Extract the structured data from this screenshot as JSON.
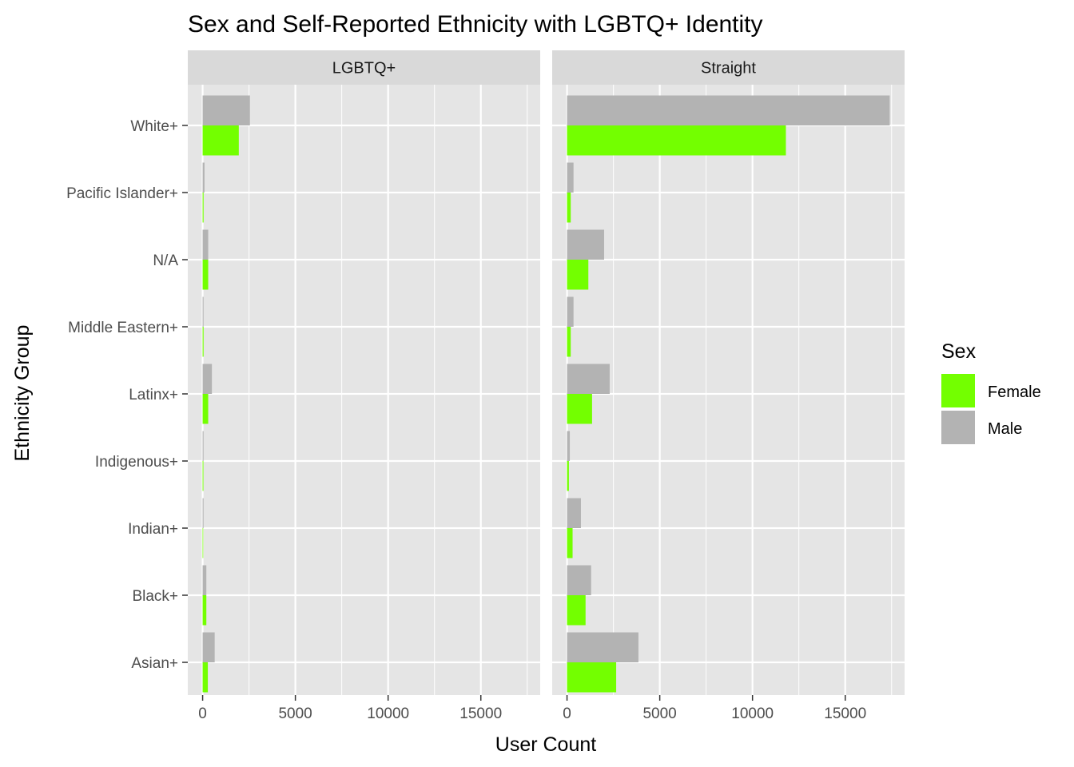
{
  "chart_data": {
    "type": "bar",
    "orientation": "horizontal",
    "title": "Sex and Self-Reported Ethnicity with LGBTQ+ Identity",
    "xlabel": "User Count",
    "ylabel": "Ethnicity Group",
    "xlim": [
      -800,
      18200
    ],
    "x_ticks": [
      0,
      5000,
      10000,
      15000
    ],
    "categories": [
      "White+",
      "Pacific Islander+",
      "N/A",
      "Middle Eastern+",
      "Latinx+",
      "Indigenous+",
      "Indian+",
      "Black+",
      "Asian+"
    ],
    "facets": [
      {
        "label": "LGBTQ+",
        "series": [
          {
            "name": "Female",
            "values": [
              1950,
              50,
              300,
              50,
              300,
              40,
              30,
              200,
              280
            ]
          },
          {
            "name": "Male",
            "values": [
              2550,
              100,
              300,
              50,
              500,
              50,
              50,
              200,
              650
            ]
          }
        ]
      },
      {
        "label": "Straight",
        "series": [
          {
            "name": "Female",
            "values": [
              11800,
              200,
              1150,
              200,
              1350,
              100,
              300,
              1000,
              2650
            ]
          },
          {
            "name": "Male",
            "values": [
              17400,
              350,
              2000,
              350,
              2300,
              150,
              750,
              1300,
              3850
            ]
          }
        ]
      }
    ],
    "legend": {
      "title": "Sex",
      "position": "right",
      "entries": [
        {
          "name": "Female",
          "color": "#73ff00"
        },
        {
          "name": "Male",
          "color": "#b3b3b3"
        }
      ]
    },
    "colors": {
      "Female": "#73ff00",
      "Male": "#b3b3b3",
      "panel": "#e5e5e5",
      "strip": "#d9d9d9",
      "grid": "#ffffff"
    },
    "grid": true
  }
}
